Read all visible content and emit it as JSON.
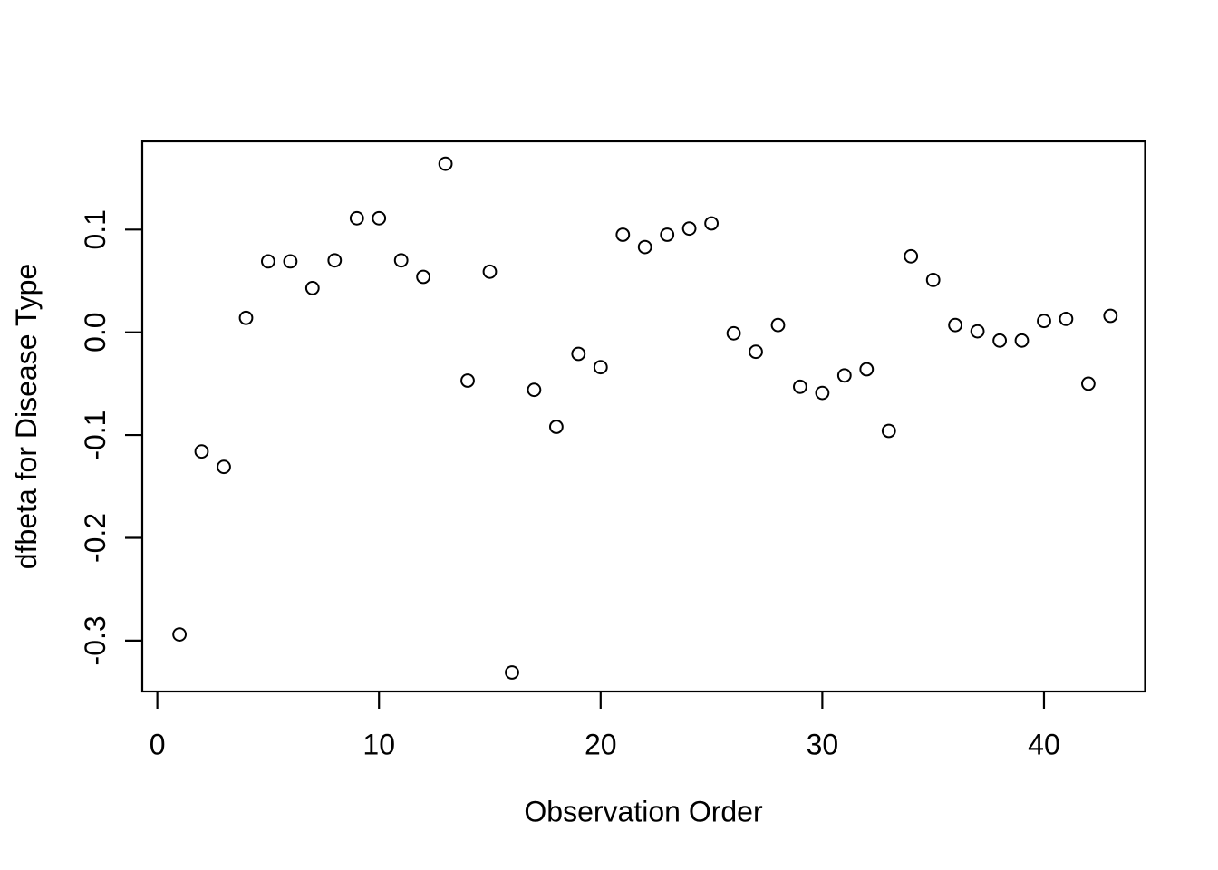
{
  "figure": {
    "background": "#ffffff",
    "foreground": "#000000",
    "title": ""
  },
  "chart_data": {
    "type": "scatter",
    "title": "",
    "xlabel": "Observation Order",
    "ylabel": "dfbeta for Disease Type",
    "marker": "open-circle",
    "marker_color": "#000000",
    "grid": false,
    "legend": null,
    "x": [
      1,
      2,
      3,
      4,
      5,
      6,
      7,
      8,
      9,
      10,
      11,
      12,
      13,
      14,
      15,
      16,
      17,
      18,
      19,
      20,
      21,
      22,
      23,
      24,
      25,
      26,
      27,
      28,
      29,
      30,
      31,
      32,
      33,
      34,
      35,
      36,
      37,
      38,
      39,
      40,
      41,
      42,
      43
    ],
    "y": [
      -0.294,
      -0.116,
      -0.131,
      0.014,
      0.069,
      0.069,
      0.043,
      0.07,
      0.111,
      0.111,
      0.07,
      0.054,
      0.164,
      -0.047,
      0.059,
      -0.331,
      -0.056,
      -0.092,
      -0.021,
      -0.034,
      0.095,
      0.083,
      0.095,
      0.101,
      0.106,
      -0.001,
      -0.019,
      0.007,
      -0.053,
      -0.059,
      -0.042,
      -0.036,
      -0.096,
      0.074,
      0.051,
      0.007,
      0.001,
      -0.008,
      -0.008,
      0.011,
      0.013,
      -0.05,
      0.016
    ],
    "xlim": [
      -0.68,
      44.56
    ],
    "ylim": [
      -0.3495,
      0.1858
    ],
    "x_ticks": [
      0,
      10,
      20,
      30,
      40
    ],
    "x_tick_labels": [
      "0",
      "10",
      "20",
      "30",
      "40"
    ],
    "y_ticks": [
      -0.3,
      -0.2,
      -0.1,
      0.0,
      0.1
    ],
    "y_tick_labels": [
      "-0.3",
      "-0.2",
      "-0.1",
      "0.0",
      "0.1"
    ]
  }
}
